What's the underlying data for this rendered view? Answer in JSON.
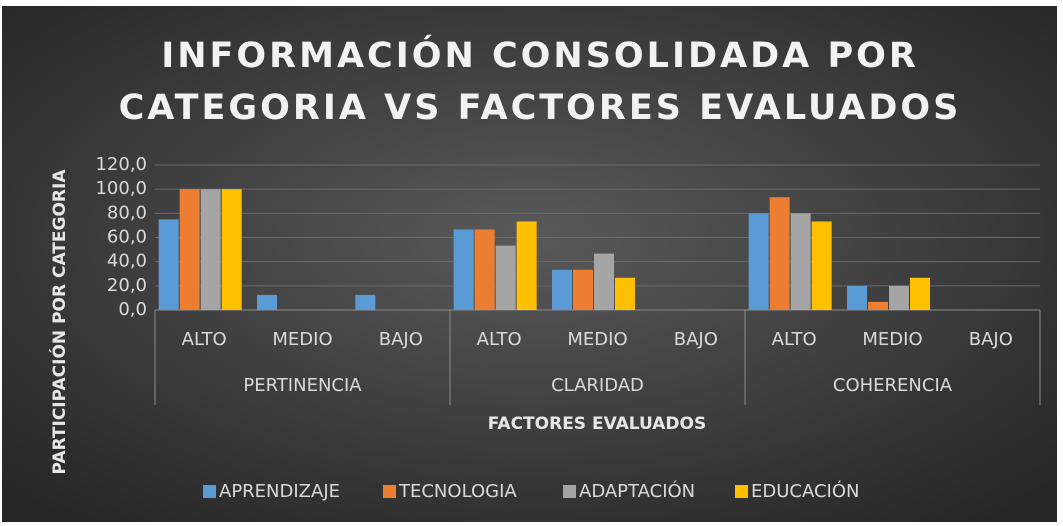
{
  "chart_data": {
    "type": "bar",
    "title": [
      "INFORMACIÓN CONSOLIDADA POR",
      "CATEGORIA VS FACTORES EVALUADOS"
    ],
    "x_label": "FACTORES EVALUADOS",
    "y_label": "PARTICIPACIÓN POR CATEGORIA",
    "categories": [
      "ALTO",
      "MEDIO",
      "BAJO",
      "ALTO",
      "MEDIO",
      "BAJO",
      "ALTO",
      "MEDIO",
      "BAJO"
    ],
    "groups": [
      "PERTINENCIA",
      "CLARIDAD",
      "COHERENCIA"
    ],
    "series": [
      {
        "name": "APRENDIZAJE",
        "color": "#5b9bd5",
        "values": [
          75,
          12.5,
          12.5,
          66.7,
          33.3,
          0,
          80,
          20,
          0
        ]
      },
      {
        "name": "TECNOLOGIA",
        "color": "#ed7d31",
        "values": [
          100,
          0,
          0,
          66.7,
          33.3,
          0,
          93.3,
          6.7,
          0
        ]
      },
      {
        "name": "ADAPTACIÓN",
        "color": "#a5a5a5",
        "values": [
          100,
          0,
          0,
          53.3,
          46.7,
          0,
          80,
          20,
          0
        ]
      },
      {
        "name": "EDUCACIÓN",
        "color": "#ffc000",
        "values": [
          100,
          0,
          0,
          73.3,
          26.7,
          0,
          73.3,
          26.7,
          0
        ]
      }
    ],
    "ylim": [
      0,
      120
    ],
    "yticks": [
      {
        "value": 0,
        "label": "0,0"
      },
      {
        "value": 20,
        "label": "20,0"
      },
      {
        "value": 40,
        "label": "40,0"
      },
      {
        "value": 60,
        "label": "60,0"
      },
      {
        "value": 80,
        "label": "80,0"
      },
      {
        "value": 100,
        "label": "100,0"
      },
      {
        "value": 120,
        "label": "120,0"
      }
    ],
    "grid": true,
    "legend": "bottom"
  }
}
